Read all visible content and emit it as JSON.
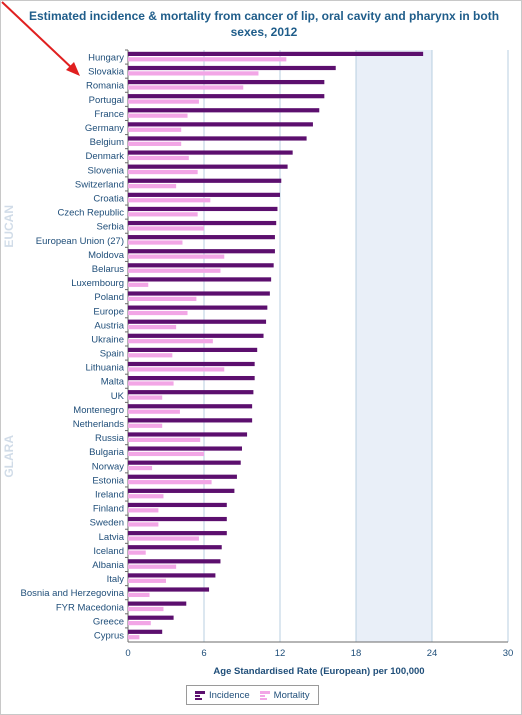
{
  "chart_data": {
    "type": "bar",
    "orientation": "horizontal",
    "title": "Estimated incidence & mortality from cancer of lip, oral cavity and pharynx in both sexes, 2012",
    "xlabel": "Age Standardised Rate (European) per 100,000",
    "xlim": [
      0,
      30
    ],
    "xticks": [
      "0",
      "6",
      "12",
      "18",
      "24",
      "30"
    ],
    "grid": true,
    "legend_position": "bottom",
    "categories": [
      "Hungary",
      "Slovakia",
      "Romania",
      "Portugal",
      "France",
      "Germany",
      "Belgium",
      "Denmark",
      "Slovenia",
      "Switzerland",
      "Croatia",
      "Czech Republic",
      "Serbia",
      "European Union (27)",
      "Moldova",
      "Belarus",
      "Luxembourg",
      "Poland",
      "Europe",
      "Austria",
      "Ukraine",
      "Spain",
      "Lithuania",
      "Malta",
      "UK",
      "Montenegro",
      "Netherlands",
      "Russia",
      "Bulgaria",
      "Norway",
      "Estonia",
      "Ireland",
      "Finland",
      "Sweden",
      "Latvia",
      "Iceland",
      "Albania",
      "Italy",
      "Bosnia and Herzegovina",
      "FYR Macedonia",
      "Greece",
      "Cyprus"
    ],
    "series": [
      {
        "name": "Incidence",
        "color": "#5c0f6e",
        "values": [
          23.3,
          16.4,
          15.5,
          15.5,
          15.1,
          14.6,
          14.1,
          13.0,
          12.6,
          12.1,
          12.0,
          11.8,
          11.7,
          11.6,
          11.6,
          11.5,
          11.3,
          11.2,
          11.0,
          10.9,
          10.7,
          10.2,
          10.0,
          10.0,
          9.9,
          9.8,
          9.8,
          9.4,
          9.0,
          8.9,
          8.6,
          8.4,
          7.8,
          7.8,
          7.8,
          7.4,
          7.3,
          6.9,
          6.4,
          4.6,
          3.6,
          2.7
        ]
      },
      {
        "name": "Mortality",
        "color": "#f2a6e6",
        "values": [
          12.5,
          10.3,
          9.1,
          5.6,
          4.7,
          4.2,
          4.2,
          4.8,
          5.5,
          3.8,
          6.5,
          5.5,
          6.0,
          4.3,
          7.6,
          7.3,
          1.6,
          5.4,
          4.7,
          3.8,
          6.7,
          3.5,
          7.6,
          3.6,
          2.7,
          4.1,
          2.7,
          5.7,
          6.0,
          1.9,
          6.6,
          2.8,
          2.4,
          2.4,
          5.6,
          1.4,
          3.8,
          3.0,
          1.7,
          2.8,
          1.8,
          0.9
        ]
      }
    ]
  },
  "watermark": {
    "text1": "EUCAN",
    "text2": "GLARA"
  },
  "colors": {
    "title": "#1f5d8a",
    "axis_text": "#1f4e79",
    "plot_bg_band": "#e9eff8",
    "grid": "#b8cfe0",
    "arrow": "#e02020"
  }
}
